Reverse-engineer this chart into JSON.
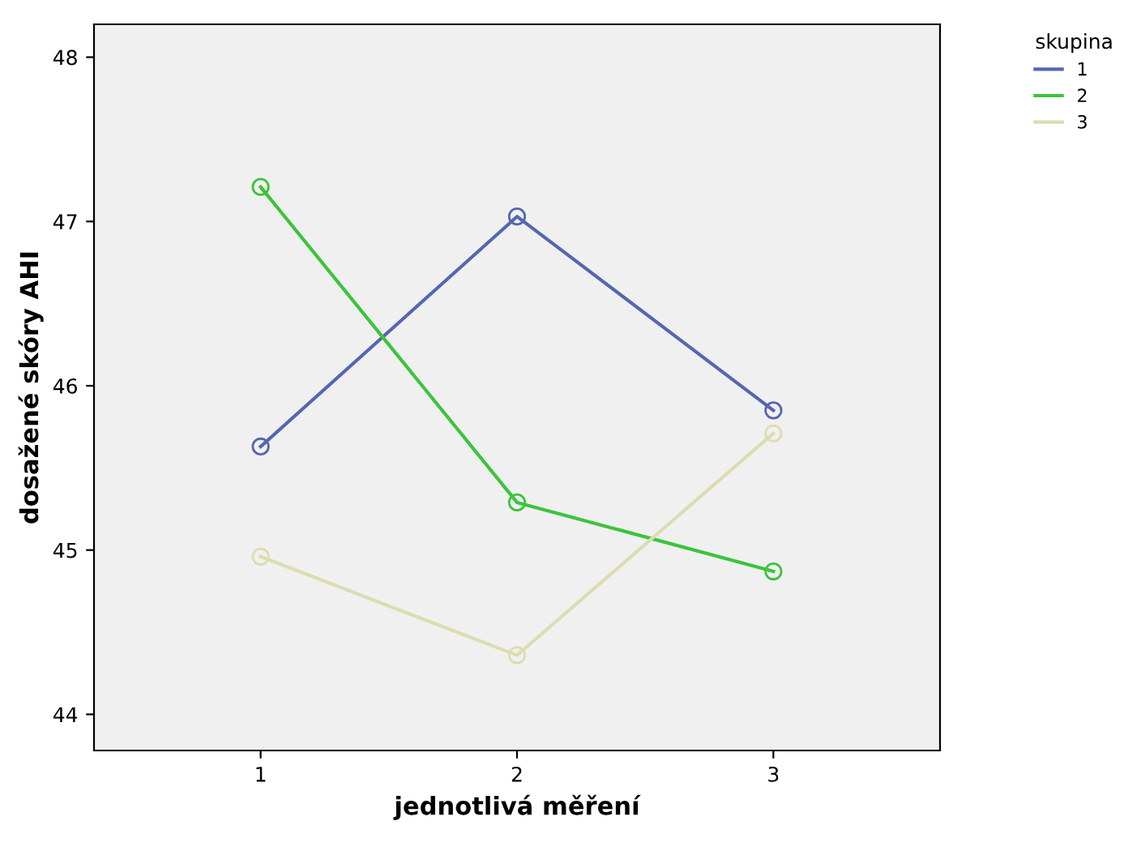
{
  "chart_data": {
    "type": "line",
    "xlabel": "jednotlivá měření",
    "ylabel": "dosažené skóry AHI",
    "legend_title": "skupina",
    "x": [
      1,
      2,
      3
    ],
    "series": [
      {
        "name": "1",
        "color": "#5566b0",
        "values": [
          45.63,
          47.03,
          45.85
        ]
      },
      {
        "name": "2",
        "color": "#3cc43c",
        "values": [
          47.21,
          45.29,
          44.87
        ]
      },
      {
        "name": "3",
        "color": "#dcdcb0",
        "values": [
          44.96,
          44.36,
          45.71
        ]
      }
    ],
    "xlim": [
      0.35,
      3.65
    ],
    "xticks": [
      1,
      2,
      3
    ],
    "ylim": [
      43.78,
      48.2
    ],
    "yticks": [
      44,
      45,
      46,
      47,
      48
    ],
    "marker": "circle",
    "line_style": "solid",
    "grid": false,
    "legend": "top right"
  }
}
